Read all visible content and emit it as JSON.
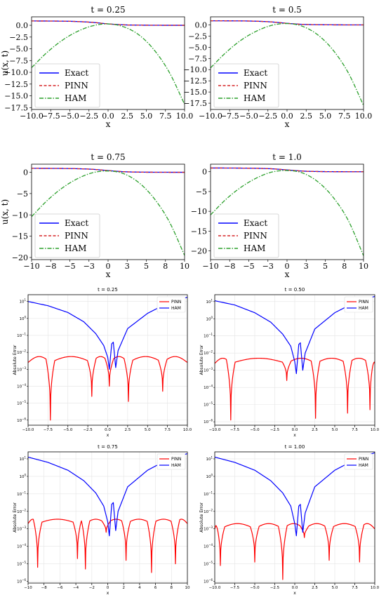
{
  "chart_data": [
    {
      "type": "line",
      "panel": "solution",
      "title": "t = 0.25",
      "xlabel": "x",
      "ylabel": "u(x, t)",
      "xlim": [
        -10.0,
        10.0
      ],
      "ylim": [
        -17.9,
        1.8
      ],
      "xticks": [
        -10.0,
        -7.5,
        -5.0,
        -2.5,
        0.0,
        2.5,
        5.0,
        7.5,
        10.0
      ],
      "yticks": [
        0.0,
        -2.5,
        -5.0,
        -7.5,
        -10.0,
        -12.5,
        -15.0,
        -17.5
      ],
      "tick_decimals": 1,
      "legend_position": "lower-left",
      "x": [
        -10,
        -8,
        -6,
        -4,
        -2,
        0,
        2,
        4,
        6,
        8,
        10
      ],
      "series": [
        {
          "name": "Exact",
          "color": "#0000ff",
          "style": "solid",
          "values": [
            0.92,
            0.91,
            0.88,
            0.8,
            0.62,
            0.3,
            0.1,
            0.03,
            0.01,
            0.0,
            0.0
          ]
        },
        {
          "name": "PINN",
          "color": "#d62728",
          "style": "dashed",
          "values": [
            0.92,
            0.91,
            0.88,
            0.8,
            0.62,
            0.3,
            0.1,
            0.03,
            0.01,
            0.0,
            0.0
          ]
        },
        {
          "name": "HAM",
          "color": "#2ca02c",
          "style": "dashdot",
          "values": [
            -9.0,
            -5.8,
            -3.2,
            -1.3,
            -0.1,
            0.3,
            -0.3,
            -2.0,
            -5.2,
            -10.0,
            -16.8
          ]
        }
      ]
    },
    {
      "type": "line",
      "panel": "solution",
      "title": "t = 0.5",
      "xlabel": "x",
      "ylabel": "",
      "xlim": [
        -10.0,
        10.0
      ],
      "ylim": [
        -18.9,
        1.8
      ],
      "xticks": [
        -10.0,
        -7.5,
        -5.0,
        -2.5,
        0.0,
        2.5,
        5.0,
        7.5,
        10.0
      ],
      "yticks": [
        0.0,
        -2.5,
        -5.0,
        -7.5,
        -10.0,
        -12.5,
        -15.0,
        -17.5
      ],
      "tick_decimals": 1,
      "legend_position": "lower-left",
      "x": [
        -10,
        -8,
        -6,
        -4,
        -2,
        0,
        2,
        4,
        6,
        8,
        10
      ],
      "series": [
        {
          "name": "Exact",
          "color": "#0000ff",
          "style": "solid",
          "values": [
            0.92,
            0.91,
            0.89,
            0.82,
            0.66,
            0.35,
            0.12,
            0.04,
            0.01,
            0.0,
            0.0
          ]
        },
        {
          "name": "PINN",
          "color": "#d62728",
          "style": "dashed",
          "values": [
            0.92,
            0.91,
            0.89,
            0.82,
            0.66,
            0.35,
            0.12,
            0.04,
            0.01,
            0.0,
            0.0
          ]
        },
        {
          "name": "HAM",
          "color": "#2ca02c",
          "style": "dashdot",
          "values": [
            -9.6,
            -6.2,
            -3.4,
            -1.4,
            -0.1,
            0.3,
            -0.3,
            -2.2,
            -5.6,
            -10.7,
            -18.0
          ]
        }
      ]
    },
    {
      "type": "line",
      "panel": "solution",
      "title": "t = 0.75",
      "xlabel": "x",
      "ylabel": "u(x, t)",
      "xlim": [
        -10.0,
        10.0
      ],
      "ylim": [
        -20.5,
        1.9
      ],
      "xticks": [
        -10.0,
        -7.5,
        -5.0,
        -2.5,
        0.0,
        2.5,
        5.0,
        7.5,
        10.0
      ],
      "yticks": [
        0,
        -5,
        -10,
        -15,
        -20
      ],
      "tick_decimals": 0,
      "legend_position": "lower-left",
      "x": [
        -10,
        -8,
        -6,
        -4,
        -2,
        0,
        2,
        4,
        6,
        8,
        10
      ],
      "series": [
        {
          "name": "Exact",
          "color": "#0000ff",
          "style": "solid",
          "values": [
            0.93,
            0.92,
            0.9,
            0.84,
            0.7,
            0.4,
            0.14,
            0.04,
            0.01,
            0.0,
            0.0
          ]
        },
        {
          "name": "PINN",
          "color": "#d62728",
          "style": "dashed",
          "values": [
            0.93,
            0.92,
            0.9,
            0.84,
            0.7,
            0.4,
            0.14,
            0.04,
            0.01,
            0.0,
            0.0
          ]
        },
        {
          "name": "HAM",
          "color": "#2ca02c",
          "style": "dashdot",
          "values": [
            -10.4,
            -6.7,
            -3.7,
            -1.5,
            -0.1,
            0.3,
            -0.3,
            -2.4,
            -6.1,
            -11.6,
            -19.5
          ]
        }
      ]
    },
    {
      "type": "line",
      "panel": "solution",
      "title": "t = 1.0",
      "xlabel": "x",
      "ylabel": "",
      "xlim": [
        -10.0,
        10.0
      ],
      "ylim": [
        -22.2,
        1.9
      ],
      "xticks": [
        -10.0,
        -7.5,
        -5.0,
        -2.5,
        0.0,
        2.5,
        5.0,
        7.5,
        10.0
      ],
      "yticks": [
        0,
        -5,
        -10,
        -15,
        -20
      ],
      "tick_decimals": 0,
      "legend_position": "lower-left",
      "x": [
        -10,
        -8,
        -6,
        -4,
        -2,
        0,
        2,
        4,
        6,
        8,
        10
      ],
      "series": [
        {
          "name": "Exact",
          "color": "#0000ff",
          "style": "solid",
          "values": [
            0.94,
            0.93,
            0.91,
            0.86,
            0.74,
            0.45,
            0.16,
            0.05,
            0.01,
            0.0,
            0.0
          ]
        },
        {
          "name": "PINN",
          "color": "#d62728",
          "style": "dashed",
          "values": [
            0.94,
            0.93,
            0.91,
            0.86,
            0.74,
            0.45,
            0.16,
            0.05,
            0.01,
            0.0,
            0.0
          ]
        },
        {
          "name": "HAM",
          "color": "#2ca02c",
          "style": "dashdot",
          "values": [
            -10.9,
            -7.0,
            -3.9,
            -1.6,
            -0.1,
            0.3,
            -0.3,
            -2.5,
            -6.4,
            -12.3,
            -21.2
          ]
        }
      ]
    },
    {
      "type": "line",
      "panel": "error",
      "title": "t = 0.25",
      "xlabel": "x",
      "ylabel": "Absolute Error",
      "xlim": [
        -10,
        10
      ],
      "log_ylim": [
        -6.3,
        1.4
      ],
      "xticks": [
        -10.0,
        -7.5,
        -5.0,
        -2.5,
        0.0,
        2.5,
        5.0,
        7.5,
        10.0
      ],
      "yticks_exp": [
        1,
        0,
        -1,
        -2,
        -3,
        -4,
        -5,
        -6
      ],
      "tick_decimals": 1,
      "yscale": "log",
      "grid": true,
      "legend_position": "top-right",
      "series": [
        {
          "name": "PINN",
          "color": "#ff0000",
          "base_log10": -2.6,
          "amplitude": 0.35,
          "dips": [
            [
              -7.2,
              -6.0
            ],
            [
              -2.0,
              -4.6
            ],
            [
              0.2,
              -4.0
            ],
            [
              2.6,
              -4.9
            ],
            [
              6.9,
              -4.3
            ]
          ]
        },
        {
          "name": "HAM",
          "color": "#0000ff",
          "base_log10": 0.0,
          "amplitude": 0.0,
          "log_profile": [
            [
              -10,
              1.0
            ],
            [
              -7.5,
              0.75
            ],
            [
              -5,
              0.35
            ],
            [
              -3,
              -0.2
            ],
            [
              -1.5,
              -0.9
            ],
            [
              -0.5,
              -1.6
            ],
            [
              0.0,
              -2.3
            ],
            [
              0.2,
              -3.0
            ],
            [
              0.5,
              -1.5
            ],
            [
              0.7,
              -1.4
            ],
            [
              1.0,
              -2.9
            ],
            [
              1.3,
              -1.9
            ],
            [
              2.5,
              -0.6
            ],
            [
              5,
              0.3
            ],
            [
              7.5,
              0.9
            ],
            [
              10,
              1.25
            ]
          ]
        }
      ]
    },
    {
      "type": "line",
      "panel": "error",
      "title": "t = 0.50",
      "xlabel": "x",
      "ylabel": "Absolute Error",
      "xlim": [
        -10,
        10
      ],
      "log_ylim": [
        -6.2,
        1.4
      ],
      "xticks": [
        -10.0,
        -7.5,
        -5.0,
        -2.5,
        0.0,
        2.5,
        5.0,
        7.5,
        10.0
      ],
      "yticks_exp": [
        1,
        0,
        -1,
        -2,
        -3,
        -4,
        -5,
        -6
      ],
      "tick_decimals": 1,
      "yscale": "log",
      "grid": true,
      "legend_position": "top-right",
      "series": [
        {
          "name": "PINN",
          "color": "#ff0000",
          "base_log10": -2.6,
          "amplitude": 0.3,
          "dips": [
            [
              -8.0,
              -5.9
            ],
            [
              -1.0,
              -3.6
            ],
            [
              2.6,
              -5.8
            ],
            [
              6.6,
              -5.5
            ],
            [
              9.4,
              -5.3
            ]
          ]
        },
        {
          "name": "HAM",
          "color": "#0000ff",
          "base_log10": 0.0,
          "amplitude": 0.0,
          "log_profile": [
            [
              -10,
              1.05
            ],
            [
              -7.5,
              0.8
            ],
            [
              -5,
              0.35
            ],
            [
              -3,
              -0.2
            ],
            [
              -1.5,
              -0.9
            ],
            [
              -0.5,
              -1.6
            ],
            [
              0.0,
              -2.5
            ],
            [
              0.2,
              -3.2
            ],
            [
              0.5,
              -1.5
            ],
            [
              0.7,
              -1.4
            ],
            [
              1.0,
              -3.0
            ],
            [
              1.3,
              -2.0
            ],
            [
              2.5,
              -0.6
            ],
            [
              5,
              0.35
            ],
            [
              7.5,
              0.95
            ],
            [
              10,
              1.3
            ]
          ]
        }
      ]
    },
    {
      "type": "line",
      "panel": "error",
      "title": "t = 0.75",
      "xlabel": "x",
      "ylabel": "Absolute Error",
      "xlim": [
        -10,
        10
      ],
      "log_ylim": [
        -6.1,
        1.4
      ],
      "xticks": [
        -10,
        -8,
        -6,
        -4,
        -2,
        0,
        2,
        4,
        6,
        8,
        10
      ],
      "yticks_exp": [
        1,
        0,
        -1,
        -2,
        -3,
        -4,
        -5,
        -6
      ],
      "tick_decimals": 0,
      "yscale": "log",
      "grid": true,
      "legend_position": "top-right",
      "series": [
        {
          "name": "PINN",
          "color": "#ff0000",
          "base_log10": -2.7,
          "amplitude": 0.25,
          "dips": [
            [
              -8.8,
              -5.2
            ],
            [
              -3.8,
              -4.7
            ],
            [
              -2.8,
              -5.3
            ],
            [
              -0.2,
              -3.2
            ],
            [
              2.3,
              -4.8
            ],
            [
              5.5,
              -5.5
            ],
            [
              8.5,
              -5.0
            ]
          ]
        },
        {
          "name": "HAM",
          "color": "#0000ff",
          "base_log10": 0.0,
          "amplitude": 0.0,
          "log_profile": [
            [
              -10,
              1.1
            ],
            [
              -7.5,
              0.8
            ],
            [
              -5,
              0.35
            ],
            [
              -3,
              -0.25
            ],
            [
              -1.5,
              -0.95
            ],
            [
              -0.5,
              -1.7
            ],
            [
              0.0,
              -2.6
            ],
            [
              0.2,
              -3.4
            ],
            [
              0.5,
              -1.6
            ],
            [
              0.7,
              -1.5
            ],
            [
              1.0,
              -3.1
            ],
            [
              1.3,
              -2.0
            ],
            [
              2.5,
              -0.6
            ],
            [
              5,
              0.35
            ],
            [
              7.5,
              0.95
            ],
            [
              10,
              1.3
            ]
          ]
        }
      ]
    },
    {
      "type": "line",
      "panel": "error",
      "title": "t = 1.00",
      "xlabel": "x",
      "ylabel": "Absolute Error",
      "xlim": [
        -10,
        10
      ],
      "log_ylim": [
        -6.1,
        1.4
      ],
      "xticks": [
        -10.0,
        -7.5,
        -5.0,
        -2.5,
        0.0,
        2.5,
        5.0,
        7.5,
        10.0
      ],
      "yticks_exp": [
        1,
        0,
        -1,
        -2,
        -3,
        -4,
        -5,
        -6
      ],
      "tick_decimals": 1,
      "yscale": "log",
      "grid": true,
      "legend_position": "top-right",
      "series": [
        {
          "name": "PINN",
          "color": "#ff0000",
          "base_log10": -3.0,
          "amplitude": 0.3,
          "dips": [
            [
              -9.3,
              -5.1
            ],
            [
              -5.0,
              -4.9
            ],
            [
              -1.5,
              -5.9
            ],
            [
              1.2,
              -3.5
            ],
            [
              4.3,
              -4.8
            ],
            [
              8.1,
              -4.9
            ]
          ]
        },
        {
          "name": "HAM",
          "color": "#0000ff",
          "base_log10": 0.0,
          "amplitude": 0.0,
          "log_profile": [
            [
              -10,
              1.1
            ],
            [
              -7.5,
              0.8
            ],
            [
              -5,
              0.35
            ],
            [
              -3,
              -0.25
            ],
            [
              -1.5,
              -0.95
            ],
            [
              -0.5,
              -1.7
            ],
            [
              0.0,
              -2.7
            ],
            [
              0.2,
              -3.4
            ],
            [
              0.5,
              -1.7
            ],
            [
              0.7,
              -1.6
            ],
            [
              1.0,
              -3.2
            ],
            [
              1.3,
              -2.1
            ],
            [
              2.5,
              -0.6
            ],
            [
              5,
              0.35
            ],
            [
              7.5,
              0.95
            ],
            [
              10,
              1.35
            ]
          ]
        }
      ]
    }
  ]
}
